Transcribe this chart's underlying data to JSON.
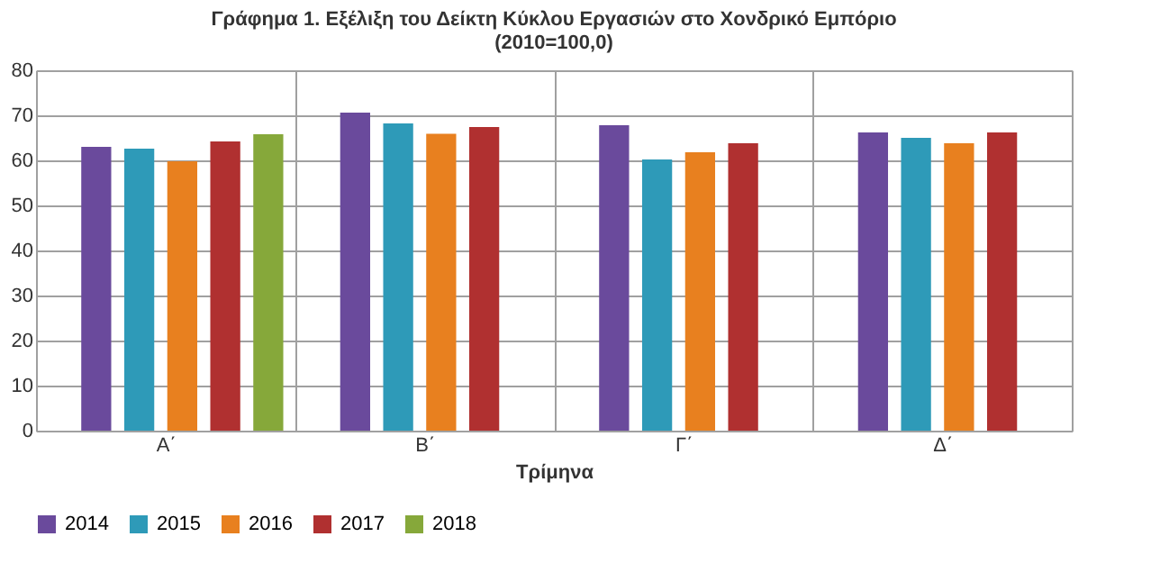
{
  "chart_data": {
    "type": "bar",
    "title": [
      "Γράφημα 1.  Εξέλιξη του Δείκτη Κύκλου Εργασιών στο Χονδρικό Εμπόριο",
      "(2010=100,0)"
    ],
    "xlabel": "Τρίμηνα",
    "categories": [
      "Α΄",
      "Β΄",
      "Γ΄",
      "Δ΄"
    ],
    "series": [
      {
        "name": "2014",
        "color": "#6a4a9c",
        "values": [
          63.0,
          70.6,
          67.8,
          66.2
        ]
      },
      {
        "name": "2015",
        "color": "#2e9ab8",
        "values": [
          62.6,
          68.2,
          60.2,
          65.0
        ]
      },
      {
        "name": "2016",
        "color": "#e8801f",
        "values": [
          59.8,
          65.9,
          61.8,
          63.8
        ]
      },
      {
        "name": "2017",
        "color": "#b03030",
        "values": [
          64.2,
          67.4,
          63.8,
          66.2
        ]
      },
      {
        "name": "2018",
        "color": "#86a83a",
        "values": [
          65.8,
          null,
          null,
          null
        ]
      }
    ],
    "ylim": [
      0,
      80
    ],
    "yticks": [
      0,
      10,
      20,
      30,
      40,
      50,
      60,
      70,
      80
    ],
    "grid": true,
    "legend": "bottom"
  }
}
